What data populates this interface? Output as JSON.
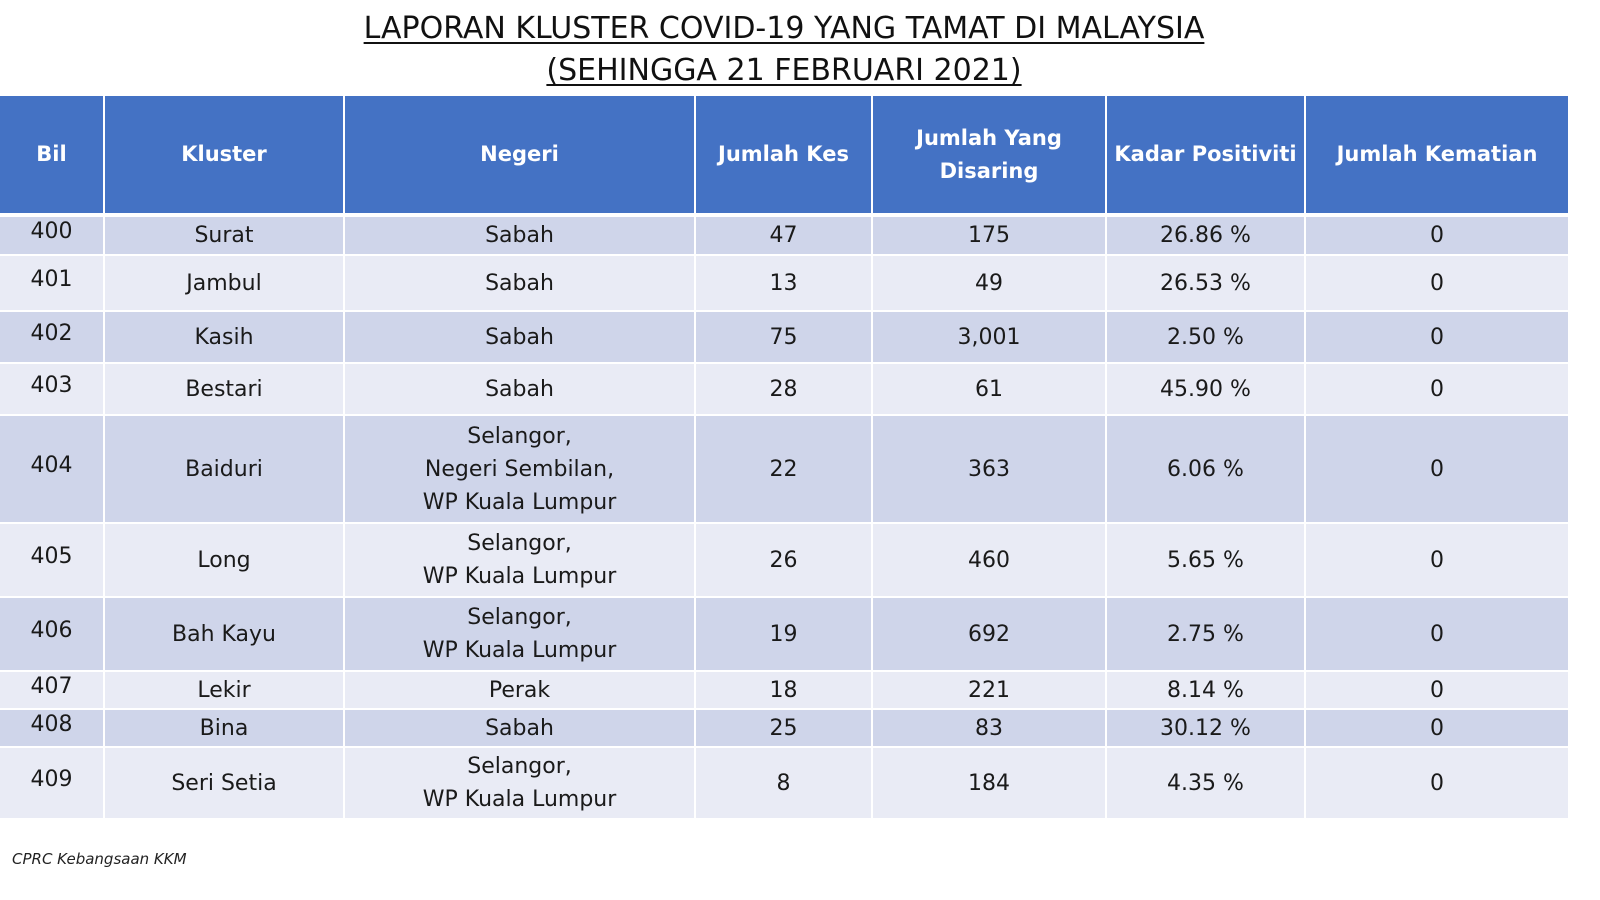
{
  "title": {
    "line1": "LAPORAN KLUSTER COVID-19 YANG TAMAT DI MALAYSIA",
    "line2": "(SEHINGGA 21 FEBRUARI 2021)"
  },
  "colors": {
    "header_bg": "#4472C4",
    "row_odd": "#CFD5EA",
    "row_even": "#E9EBF5"
  },
  "table": {
    "headers": {
      "bil": "Bil",
      "kluster": "Kluster",
      "negeri": "Negeri",
      "jumlah_kes": "Jumlah Kes",
      "jumlah_disaring": "Jumlah Yang Disaring",
      "kadar_positiviti": "Kadar Positiviti",
      "jumlah_kematian": "Jumlah Kematian"
    },
    "rows": [
      {
        "bil": "400",
        "kluster": "Surat",
        "negeri": [
          "Sabah"
        ],
        "jumlah_kes": "47",
        "jumlah_disaring": "175",
        "kadar_positiviti": "26.86 %",
        "jumlah_kematian": "0"
      },
      {
        "bil": "401",
        "kluster": "Jambul",
        "negeri": [
          "Sabah"
        ],
        "jumlah_kes": "13",
        "jumlah_disaring": "49",
        "kadar_positiviti": "26.53 %",
        "jumlah_kematian": "0"
      },
      {
        "bil": "402",
        "kluster": "Kasih",
        "negeri": [
          "Sabah"
        ],
        "jumlah_kes": "75",
        "jumlah_disaring": "3,001",
        "kadar_positiviti": "2.50 %",
        "jumlah_kematian": "0"
      },
      {
        "bil": "403",
        "kluster": "Bestari",
        "negeri": [
          "Sabah"
        ],
        "jumlah_kes": "28",
        "jumlah_disaring": "61",
        "kadar_positiviti": "45.90 %",
        "jumlah_kematian": "0"
      },
      {
        "bil": "404",
        "kluster": "Baiduri",
        "negeri": [
          "Selangor,",
          "Negeri Sembilan,",
          "WP Kuala Lumpur"
        ],
        "jumlah_kes": "22",
        "jumlah_disaring": "363",
        "kadar_positiviti": "6.06 %",
        "jumlah_kematian": "0"
      },
      {
        "bil": "405",
        "kluster": "Long",
        "negeri": [
          "Selangor,",
          "WP Kuala Lumpur"
        ],
        "jumlah_kes": "26",
        "jumlah_disaring": "460",
        "kadar_positiviti": "5.65 %",
        "jumlah_kematian": "0"
      },
      {
        "bil": "406",
        "kluster": "Bah Kayu",
        "negeri": [
          "Selangor,",
          "WP Kuala Lumpur"
        ],
        "jumlah_kes": "19",
        "jumlah_disaring": "692",
        "kadar_positiviti": "2.75 %",
        "jumlah_kematian": "0"
      },
      {
        "bil": "407",
        "kluster": "Lekir",
        "negeri": [
          "Perak"
        ],
        "jumlah_kes": "18",
        "jumlah_disaring": "221",
        "kadar_positiviti": "8.14 %",
        "jumlah_kematian": "0"
      },
      {
        "bil": "408",
        "kluster": "Bina",
        "negeri": [
          "Sabah"
        ],
        "jumlah_kes": "25",
        "jumlah_disaring": "83",
        "kadar_positiviti": "30.12 %",
        "jumlah_kematian": "0"
      },
      {
        "bil": "409",
        "kluster": "Seri Setia",
        "negeri": [
          "Selangor,",
          "WP Kuala Lumpur"
        ],
        "jumlah_kes": "8",
        "jumlah_disaring": "184",
        "kadar_positiviti": "4.35 %",
        "jumlah_kematian": "0"
      }
    ]
  },
  "footer": {
    "source": "CPRC Kebangsaan KKM"
  }
}
